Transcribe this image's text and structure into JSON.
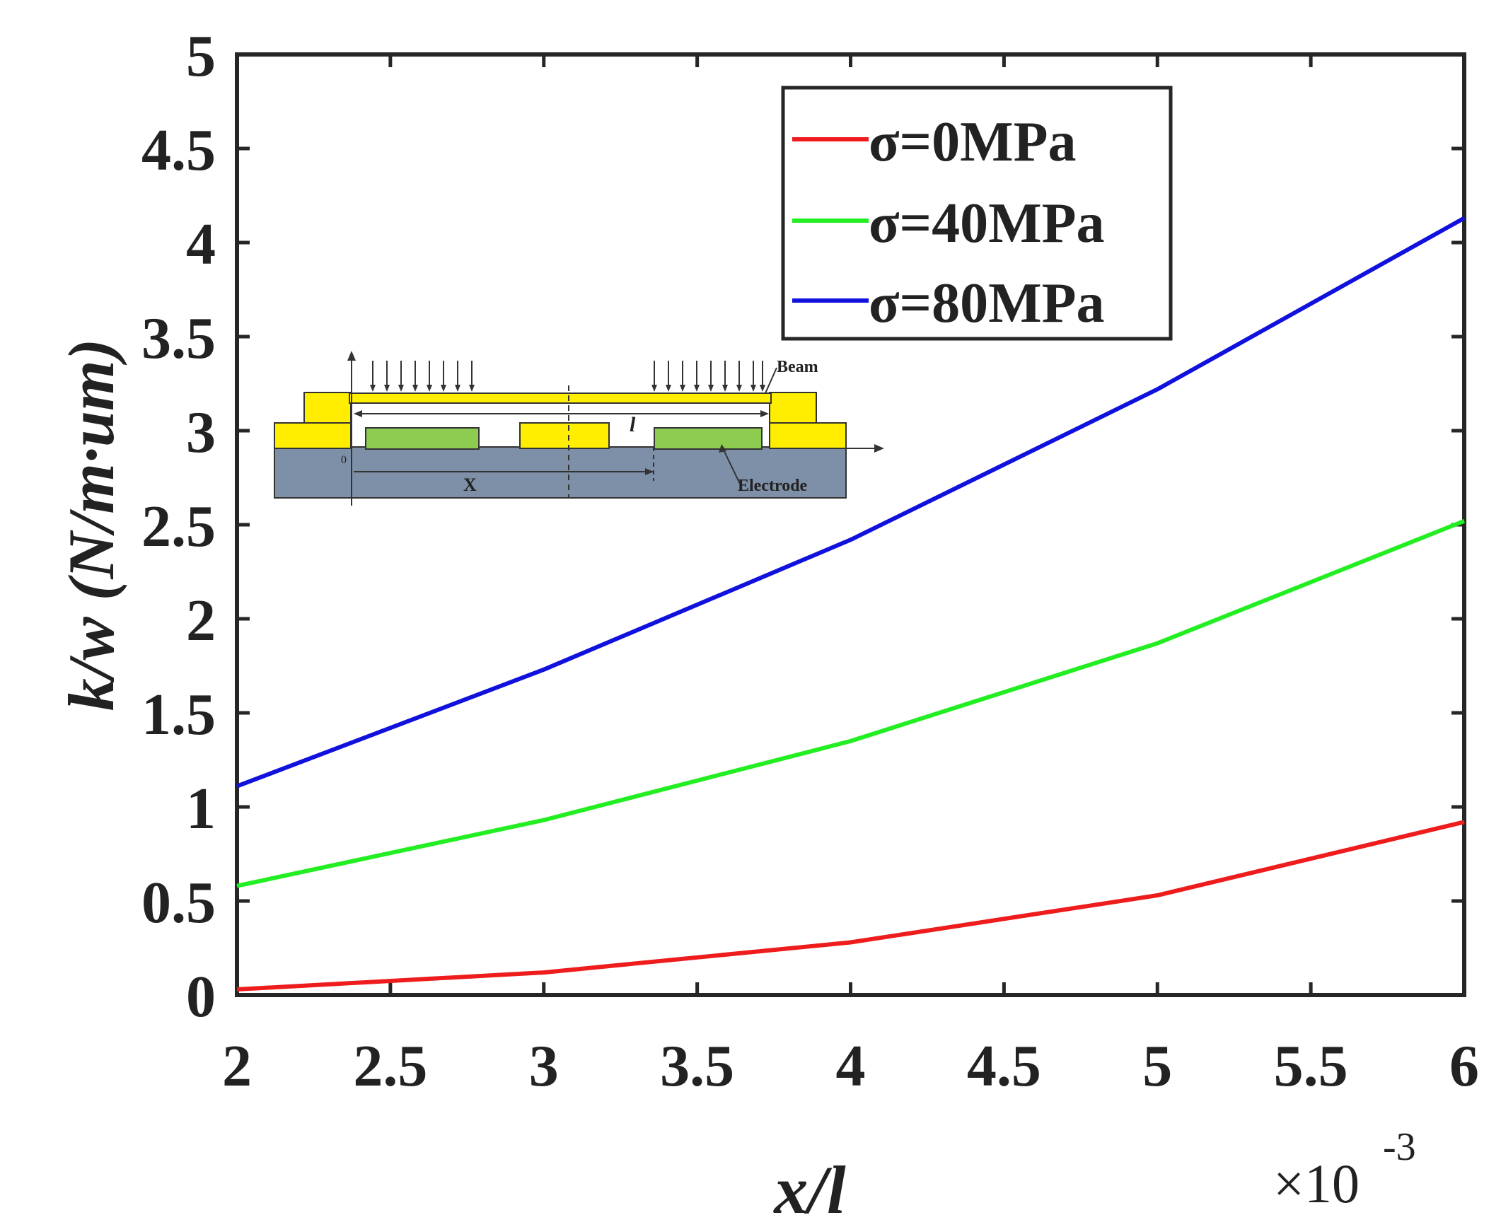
{
  "chart_data": {
    "type": "line",
    "xlabel": "x/l",
    "ylabel": "k/w (N/m·um)",
    "x_multiplier_label": "×10",
    "x_multiplier_exponent": "-3",
    "xlim": [
      2,
      6
    ],
    "ylim": [
      0,
      5
    ],
    "x_ticks": [
      "2",
      "2.5",
      "3",
      "3.5",
      "4",
      "4.5",
      "5",
      "5.5",
      "6"
    ],
    "y_ticks": [
      "0",
      "0.5",
      "1",
      "1.5",
      "2",
      "2.5",
      "3",
      "3.5",
      "4",
      "4.5",
      "5"
    ],
    "grid": false,
    "legend_position": "top-right",
    "x": [
      2,
      3,
      4,
      5,
      6
    ],
    "series": [
      {
        "name": "σ=0MPa",
        "color": "#ee1c1c",
        "values": [
          0.03,
          0.12,
          0.28,
          0.53,
          0.92
        ]
      },
      {
        "name": "σ=40MPa",
        "color": "#22ee22",
        "values": [
          0.58,
          0.93,
          1.35,
          1.87,
          2.52
        ]
      },
      {
        "name": "σ=80MPa",
        "color": "#1111dd",
        "values": [
          1.11,
          1.73,
          2.42,
          3.22,
          4.13
        ]
      }
    ],
    "inset": {
      "beam_label": "Beam",
      "length_label": "l",
      "x_label": "X",
      "origin_label": "0",
      "electrode_label": "Electrode",
      "colors": {
        "anchor": "#ffee00",
        "electrode": "#8dcc50",
        "substrate": "#7e8fa8"
      }
    }
  }
}
